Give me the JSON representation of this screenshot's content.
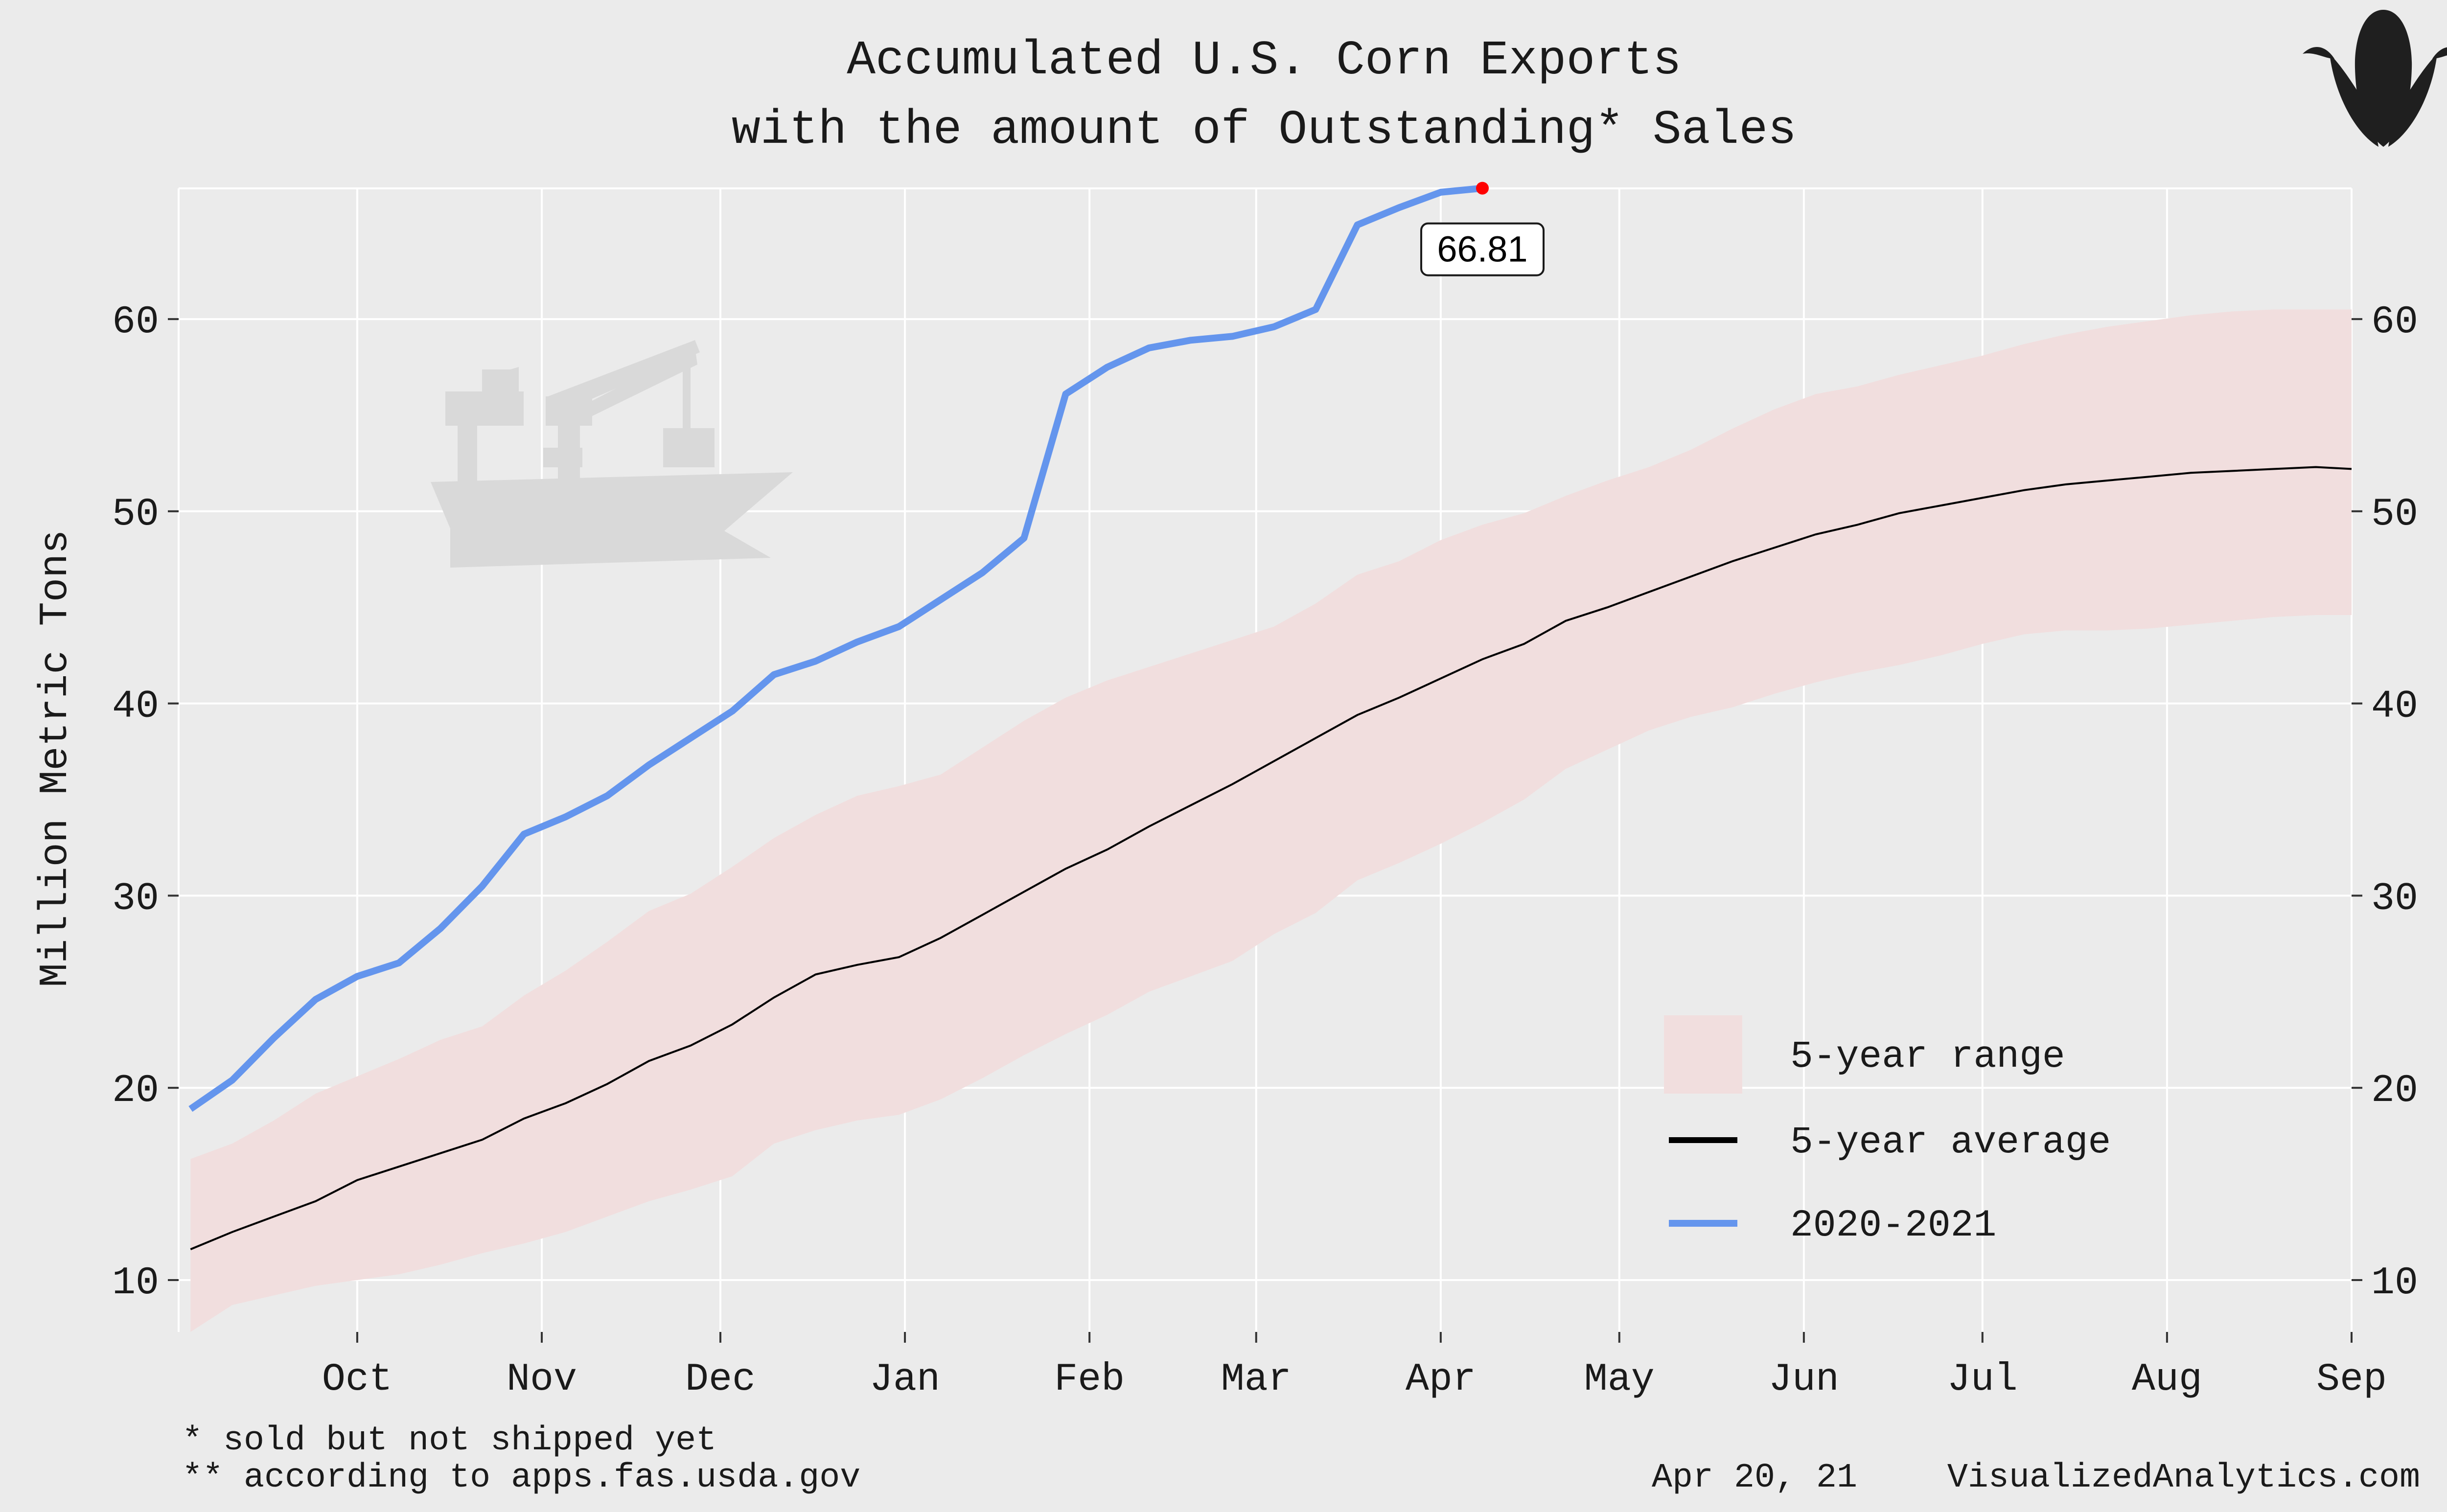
{
  "chart_data": {
    "type": "line",
    "title": "Accumulated U.S. Corn Exports",
    "subtitle": "with the amount of Outstanding* Sales",
    "ylabel": "Million Metric Tons",
    "xlabel": "",
    "x_range": [
      "2020-09-01",
      "2021-09-01"
    ],
    "ylim": [
      7.3,
      66.8
    ],
    "y_ticks": [
      "10",
      "20",
      "30",
      "40",
      "50",
      "60"
    ],
    "x_ticks": [
      {
        "date": "2020-10-01",
        "label": "Oct"
      },
      {
        "date": "2020-11-01",
        "label": "Nov"
      },
      {
        "date": "2020-12-01",
        "label": "Dec"
      },
      {
        "date": "2021-01-01",
        "label": "Jan"
      },
      {
        "date": "2021-02-01",
        "label": "Feb"
      },
      {
        "date": "2021-03-01",
        "label": "Mar"
      },
      {
        "date": "2021-04-01",
        "label": "Apr"
      },
      {
        "date": "2021-05-01",
        "label": "May"
      },
      {
        "date": "2021-06-01",
        "label": "Jun"
      },
      {
        "date": "2021-07-01",
        "label": "Jul"
      },
      {
        "date": "2021-08-01",
        "label": "Aug"
      },
      {
        "date": "2021-09-01",
        "label": "Sep"
      }
    ],
    "grid": true,
    "legend_position": "bottom-right",
    "series": [
      {
        "name": "2020-2021",
        "color": "#6495ed",
        "points": [
          [
            "2020-09-03",
            18.9
          ],
          [
            "2020-09-10",
            20.4
          ],
          [
            "2020-09-17",
            22.6
          ],
          [
            "2020-09-24",
            24.6
          ],
          [
            "2020-10-01",
            25.8
          ],
          [
            "2020-10-08",
            26.5
          ],
          [
            "2020-10-15",
            28.3
          ],
          [
            "2020-10-22",
            30.5
          ],
          [
            "2020-10-29",
            33.2
          ],
          [
            "2020-11-05",
            34.1
          ],
          [
            "2020-11-12",
            35.2
          ],
          [
            "2020-11-19",
            36.8
          ],
          [
            "2020-11-26",
            38.2
          ],
          [
            "2020-12-03",
            39.6
          ],
          [
            "2020-12-10",
            41.5
          ],
          [
            "2020-12-17",
            42.2
          ],
          [
            "2020-12-24",
            43.2
          ],
          [
            "2020-12-31",
            44.0
          ],
          [
            "2021-01-07",
            45.4
          ],
          [
            "2021-01-14",
            46.8
          ],
          [
            "2021-01-21",
            48.6
          ],
          [
            "2021-01-28",
            56.1
          ],
          [
            "2021-02-04",
            57.5
          ],
          [
            "2021-02-11",
            58.5
          ],
          [
            "2021-02-18",
            58.9
          ],
          [
            "2021-02-25",
            59.1
          ],
          [
            "2021-03-04",
            59.6
          ],
          [
            "2021-03-11",
            60.5
          ],
          [
            "2021-03-18",
            64.9
          ],
          [
            "2021-03-25",
            65.8
          ],
          [
            "2021-04-01",
            66.6
          ],
          [
            "2021-04-08",
            66.81
          ]
        ]
      }
    ],
    "five_year_average": {
      "name": "5-year average",
      "color": "#000000",
      "points": [
        [
          "2020-09-03",
          11.6
        ],
        [
          "2020-09-10",
          12.5
        ],
        [
          "2020-09-17",
          13.3
        ],
        [
          "2020-09-24",
          14.1
        ],
        [
          "2020-10-01",
          15.2
        ],
        [
          "2020-10-08",
          15.9
        ],
        [
          "2020-10-15",
          16.6
        ],
        [
          "2020-10-22",
          17.3
        ],
        [
          "2020-10-29",
          18.4
        ],
        [
          "2020-11-05",
          19.2
        ],
        [
          "2020-11-12",
          20.2
        ],
        [
          "2020-11-19",
          21.4
        ],
        [
          "2020-11-26",
          22.2
        ],
        [
          "2020-12-03",
          23.3
        ],
        [
          "2020-12-10",
          24.7
        ],
        [
          "2020-12-17",
          25.9
        ],
        [
          "2020-12-24",
          26.4
        ],
        [
          "2020-12-31",
          26.8
        ],
        [
          "2021-01-07",
          27.8
        ],
        [
          "2021-01-14",
          29.0
        ],
        [
          "2021-01-21",
          30.2
        ],
        [
          "2021-01-28",
          31.4
        ],
        [
          "2021-02-04",
          32.4
        ],
        [
          "2021-02-11",
          33.6
        ],
        [
          "2021-02-18",
          34.7
        ],
        [
          "2021-02-25",
          35.8
        ],
        [
          "2021-03-04",
          37.0
        ],
        [
          "2021-03-11",
          38.2
        ],
        [
          "2021-03-18",
          39.4
        ],
        [
          "2021-03-25",
          40.3
        ],
        [
          "2021-04-01",
          41.3
        ],
        [
          "2021-04-08",
          42.3
        ],
        [
          "2021-04-15",
          43.1
        ],
        [
          "2021-04-22",
          44.3
        ],
        [
          "2021-04-29",
          45.0
        ],
        [
          "2021-05-06",
          45.8
        ],
        [
          "2021-05-13",
          46.6
        ],
        [
          "2021-05-20",
          47.4
        ],
        [
          "2021-05-27",
          48.1
        ],
        [
          "2021-06-03",
          48.8
        ],
        [
          "2021-06-10",
          49.3
        ],
        [
          "2021-06-17",
          49.9
        ],
        [
          "2021-06-24",
          50.3
        ],
        [
          "2021-07-01",
          50.7
        ],
        [
          "2021-07-08",
          51.1
        ],
        [
          "2021-07-15",
          51.4
        ],
        [
          "2021-07-22",
          51.6
        ],
        [
          "2021-07-29",
          51.8
        ],
        [
          "2021-08-05",
          52.0
        ],
        [
          "2021-08-12",
          52.1
        ],
        [
          "2021-08-19",
          52.2
        ],
        [
          "2021-08-26",
          52.3
        ],
        [
          "2021-09-01",
          52.2
        ]
      ]
    },
    "five_year_range": {
      "name": "5-year range",
      "color": "#f1dede",
      "points": [
        [
          "2020-09-03",
          7.3,
          16.3
        ],
        [
          "2020-09-10",
          8.7,
          17.1
        ],
        [
          "2020-09-17",
          9.2,
          18.3
        ],
        [
          "2020-09-24",
          9.7,
          19.7
        ],
        [
          "2020-10-01",
          10.0,
          20.6
        ],
        [
          "2020-10-08",
          10.3,
          21.5
        ],
        [
          "2020-10-15",
          10.8,
          22.5
        ],
        [
          "2020-10-22",
          11.4,
          23.2
        ],
        [
          "2020-10-29",
          11.9,
          24.8
        ],
        [
          "2020-11-05",
          12.5,
          26.1
        ],
        [
          "2020-11-12",
          13.3,
          27.6
        ],
        [
          "2020-11-19",
          14.1,
          29.2
        ],
        [
          "2020-11-26",
          14.7,
          30.1
        ],
        [
          "2020-12-03",
          15.4,
          31.5
        ],
        [
          "2020-12-10",
          17.1,
          33.0
        ],
        [
          "2020-12-17",
          17.8,
          34.2
        ],
        [
          "2020-12-24",
          18.3,
          35.2
        ],
        [
          "2020-12-31",
          18.6,
          35.7
        ],
        [
          "2021-01-07",
          19.4,
          36.3
        ],
        [
          "2021-01-14",
          20.5,
          37.7
        ],
        [
          "2021-01-21",
          21.7,
          39.1
        ],
        [
          "2021-01-28",
          22.8,
          40.3
        ],
        [
          "2021-02-04",
          23.8,
          41.2
        ],
        [
          "2021-02-11",
          25.0,
          41.9
        ],
        [
          "2021-02-18",
          25.8,
          42.6
        ],
        [
          "2021-02-25",
          26.6,
          43.3
        ],
        [
          "2021-03-04",
          28.0,
          44.0
        ],
        [
          "2021-03-11",
          29.1,
          45.2
        ],
        [
          "2021-03-18",
          30.8,
          46.7
        ],
        [
          "2021-03-25",
          31.7,
          47.4
        ],
        [
          "2021-04-01",
          32.7,
          48.5
        ],
        [
          "2021-04-08",
          33.8,
          49.3
        ],
        [
          "2021-04-15",
          35.0,
          49.9
        ],
        [
          "2021-04-22",
          36.6,
          50.8
        ],
        [
          "2021-04-29",
          37.6,
          51.6
        ],
        [
          "2021-05-06",
          38.6,
          52.3
        ],
        [
          "2021-05-13",
          39.3,
          53.2
        ],
        [
          "2021-05-20",
          39.8,
          54.3
        ],
        [
          "2021-05-27",
          40.5,
          55.3
        ],
        [
          "2021-06-03",
          41.1,
          56.1
        ],
        [
          "2021-06-10",
          41.6,
          56.5
        ],
        [
          "2021-06-17",
          42.0,
          57.1
        ],
        [
          "2021-06-24",
          42.5,
          57.6
        ],
        [
          "2021-07-01",
          43.1,
          58.1
        ],
        [
          "2021-07-08",
          43.6,
          58.7
        ],
        [
          "2021-07-15",
          43.8,
          59.2
        ],
        [
          "2021-07-22",
          43.8,
          59.6
        ],
        [
          "2021-07-29",
          43.9,
          59.9
        ],
        [
          "2021-08-05",
          44.1,
          60.2
        ],
        [
          "2021-08-12",
          44.3,
          60.4
        ],
        [
          "2021-08-19",
          44.5,
          60.5
        ],
        [
          "2021-08-26",
          44.6,
          60.5
        ],
        [
          "2021-09-01",
          44.6,
          60.5
        ]
      ]
    },
    "annotation": {
      "date": "2021-04-08",
      "value": 66.81,
      "label": "66.81",
      "marker_color": "#ff0000"
    },
    "legend": [
      {
        "label": "5-year range",
        "kind": "fill",
        "color": "#f1dede"
      },
      {
        "label": "5-year average",
        "kind": "line",
        "color": "#000000"
      },
      {
        "label": "2020-2021",
        "kind": "line",
        "color": "#6495ed"
      }
    ]
  },
  "footnotes": {
    "line1": "* sold but not shipped yet",
    "line2": "** according to apps.fas.usda.gov",
    "date": "Apr 20, 21",
    "brand": "VisualizedAnalytics.com"
  },
  "icons": {
    "logo": "corn-icon",
    "watermark": "cargo-ship-icon"
  },
  "colors": {
    "background": "#ebebeb",
    "panel": "#ebebeb",
    "grid": "#ffffff",
    "watermark": "#d9d9d9"
  }
}
